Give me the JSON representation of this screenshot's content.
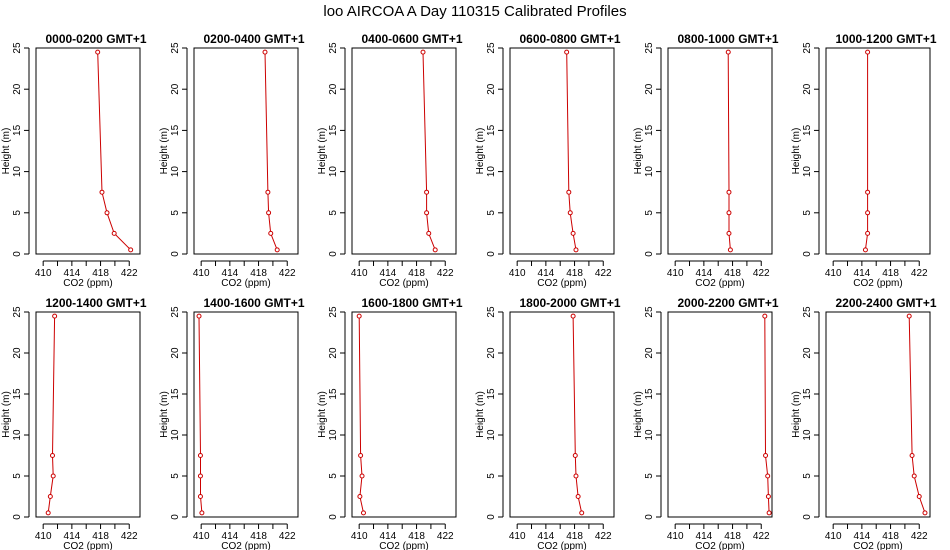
{
  "figure_title": "loo AIRCOA A  Day 110315  Calibrated Profiles",
  "colors": {
    "series": "#cc0000",
    "axes": "#000000"
  },
  "chart_data": [
    {
      "type": "line",
      "title": "0000-0200 GMT+1",
      "xlabel": "CO2 (ppm)",
      "ylabel": "Height (m)",
      "xlim": [
        409,
        423.5
      ],
      "ylim": [
        0,
        25
      ],
      "xticks": [
        410,
        414,
        418,
        422
      ],
      "yticks": [
        0,
        5,
        10,
        15,
        20,
        25
      ],
      "series": [
        {
          "x": [
            422.2,
            419.9,
            418.9,
            418.2,
            417.6
          ],
          "y": [
            0.5,
            2.5,
            5.0,
            7.5,
            24.5
          ]
        }
      ]
    },
    {
      "type": "line",
      "title": "0200-0400 GMT+1",
      "xlabel": "CO2 (ppm)",
      "ylabel": "Height (m)",
      "xlim": [
        409,
        423.5
      ],
      "ylim": [
        0,
        25
      ],
      "xticks": [
        410,
        414,
        418,
        422
      ],
      "yticks": [
        0,
        5,
        10,
        15,
        20,
        25
      ],
      "series": [
        {
          "x": [
            420.6,
            419.7,
            419.4,
            419.3,
            418.9
          ],
          "y": [
            0.5,
            2.5,
            5.0,
            7.5,
            24.5
          ]
        }
      ]
    },
    {
      "type": "line",
      "title": "0400-0600 GMT+1",
      "xlabel": "CO2 (ppm)",
      "ylabel": "Height (m)",
      "xlim": [
        409,
        423.5
      ],
      "ylim": [
        0,
        25
      ],
      "xticks": [
        410,
        414,
        418,
        422
      ],
      "yticks": [
        0,
        5,
        10,
        15,
        20,
        25
      ],
      "series": [
        {
          "x": [
            420.6,
            419.7,
            419.4,
            419.4,
            418.9
          ],
          "y": [
            0.5,
            2.5,
            5.0,
            7.5,
            24.5
          ]
        }
      ]
    },
    {
      "type": "line",
      "title": "0600-0800 GMT+1",
      "xlabel": "CO2 (ppm)",
      "ylabel": "Height (m)",
      "xlim": [
        409,
        423.5
      ],
      "ylim": [
        0,
        25
      ],
      "xticks": [
        410,
        414,
        418,
        422
      ],
      "yticks": [
        0,
        5,
        10,
        15,
        20,
        25
      ],
      "series": [
        {
          "x": [
            418.2,
            417.8,
            417.4,
            417.2,
            416.9
          ],
          "y": [
            0.5,
            2.5,
            5.0,
            7.5,
            24.5
          ]
        }
      ]
    },
    {
      "type": "line",
      "title": "0800-1000 GMT+1",
      "xlabel": "CO2 (ppm)",
      "ylabel": "Height (m)",
      "xlim": [
        409,
        423.5
      ],
      "ylim": [
        0,
        25
      ],
      "xticks": [
        410,
        414,
        418,
        422
      ],
      "yticks": [
        0,
        5,
        10,
        15,
        20,
        25
      ],
      "series": [
        {
          "x": [
            417.7,
            417.5,
            417.5,
            417.5,
            417.4
          ],
          "y": [
            0.5,
            2.5,
            5.0,
            7.5,
            24.5
          ]
        }
      ]
    },
    {
      "type": "line",
      "title": "1000-1200 GMT+1",
      "xlabel": "CO2 (ppm)",
      "ylabel": "Height (m)",
      "xlim": [
        409,
        423.5
      ],
      "ylim": [
        0,
        25
      ],
      "xticks": [
        410,
        414,
        418,
        422
      ],
      "yticks": [
        0,
        5,
        10,
        15,
        20,
        25
      ],
      "series": [
        {
          "x": [
            414.5,
            414.8,
            414.8,
            414.8,
            414.8
          ],
          "y": [
            0.5,
            2.5,
            5.0,
            7.5,
            24.5
          ]
        }
      ]
    },
    {
      "type": "line",
      "title": "1200-1400 GMT+1",
      "xlabel": "CO2 (ppm)",
      "ylabel": "Height (m)",
      "xlim": [
        409,
        423.5
      ],
      "ylim": [
        0,
        25
      ],
      "xticks": [
        410,
        414,
        418,
        422
      ],
      "yticks": [
        0,
        5,
        10,
        15,
        20,
        25
      ],
      "series": [
        {
          "x": [
            410.7,
            411.0,
            411.4,
            411.3,
            411.6
          ],
          "y": [
            0.5,
            2.5,
            5.0,
            7.5,
            24.5
          ]
        }
      ]
    },
    {
      "type": "line",
      "title": "1400-1600 GMT+1",
      "xlabel": "CO2 (ppm)",
      "ylabel": "Height (m)",
      "xlim": [
        409,
        423.5
      ],
      "ylim": [
        0,
        25
      ],
      "xticks": [
        410,
        414,
        418,
        422
      ],
      "yticks": [
        0,
        5,
        10,
        15,
        20,
        25
      ],
      "series": [
        {
          "x": [
            410.1,
            409.9,
            409.9,
            409.9,
            409.7
          ],
          "y": [
            0.5,
            2.5,
            5.0,
            7.5,
            24.5
          ]
        }
      ]
    },
    {
      "type": "line",
      "title": "1600-1800 GMT+1",
      "xlabel": "CO2 (ppm)",
      "ylabel": "Height (m)",
      "xlim": [
        409,
        423.5
      ],
      "ylim": [
        0,
        25
      ],
      "xticks": [
        410,
        414,
        418,
        422
      ],
      "yticks": [
        0,
        5,
        10,
        15,
        20,
        25
      ],
      "series": [
        {
          "x": [
            410.6,
            410.1,
            410.4,
            410.2,
            410.0
          ],
          "y": [
            0.5,
            2.5,
            5.0,
            7.5,
            24.5
          ]
        }
      ]
    },
    {
      "type": "line",
      "title": "1800-2000 GMT+1",
      "xlabel": "CO2 (ppm)",
      "ylabel": "Height (m)",
      "xlim": [
        409,
        423.5
      ],
      "ylim": [
        0,
        25
      ],
      "xticks": [
        410,
        414,
        418,
        422
      ],
      "yticks": [
        0,
        5,
        10,
        15,
        20,
        25
      ],
      "series": [
        {
          "x": [
            419.0,
            418.5,
            418.2,
            418.1,
            417.8
          ],
          "y": [
            0.5,
            2.5,
            5.0,
            7.5,
            24.5
          ]
        }
      ]
    },
    {
      "type": "line",
      "title": "2000-2200 GMT+1",
      "xlabel": "CO2 (ppm)",
      "ylabel": "Height (m)",
      "xlim": [
        409,
        423.5
      ],
      "ylim": [
        0,
        25
      ],
      "xticks": [
        410,
        414,
        418,
        422
      ],
      "yticks": [
        0,
        5,
        10,
        15,
        20,
        25
      ],
      "series": [
        {
          "x": [
            423.1,
            423.0,
            422.9,
            422.6,
            422.5
          ],
          "y": [
            0.5,
            2.5,
            5.0,
            7.5,
            24.5
          ]
        }
      ]
    },
    {
      "type": "line",
      "title": "2200-2400 GMT+1",
      "xlabel": "CO2 (ppm)",
      "ylabel": "Height (m)",
      "xlim": [
        409,
        423.5
      ],
      "ylim": [
        0,
        25
      ],
      "xticks": [
        410,
        414,
        418,
        422
      ],
      "yticks": [
        0,
        5,
        10,
        15,
        20,
        25
      ],
      "series": [
        {
          "x": [
            422.8,
            422.0,
            421.3,
            421.0,
            420.6
          ],
          "y": [
            0.5,
            2.5,
            5.0,
            7.5,
            24.5
          ]
        }
      ]
    }
  ]
}
